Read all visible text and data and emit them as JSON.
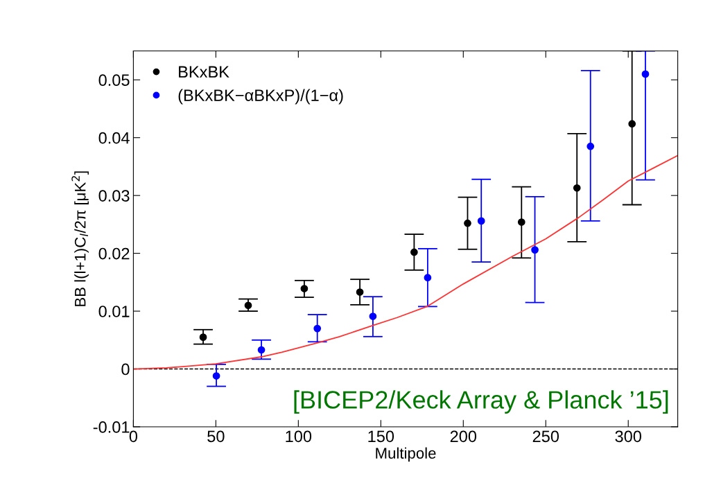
{
  "chart_data": {
    "type": "scatter",
    "xlabel": "Multipole",
    "ylabel": "BB l(l+1)C$_{l}$/2π [μK$^{2}$]",
    "xlim": [
      0,
      330
    ],
    "ylim": [
      -0.01,
      0.055
    ],
    "xticks": [
      0,
      50,
      100,
      150,
      200,
      250,
      300
    ],
    "yticks": [
      -0.01,
      0,
      0.01,
      0.02,
      0.03,
      0.04,
      0.05
    ],
    "grid": false,
    "legend": "top left",
    "marker": "circle",
    "series": [
      {
        "name": "BKxBK",
        "color": "#000000",
        "x": [
          42.3,
          69.6,
          103.6,
          137.3,
          170.2,
          202.6,
          235.3,
          268.9,
          302.3
        ],
        "values": [
          0.0055,
          0.011,
          0.0139,
          0.0133,
          0.0202,
          0.0252,
          0.0254,
          0.0313,
          0.0424
        ],
        "errors": [
          [
            0.0043,
            0.0068
          ],
          [
            0.01,
            0.0121
          ],
          [
            0.0124,
            0.0153
          ],
          [
            0.0111,
            0.0155
          ],
          [
            0.0171,
            0.0233
          ],
          [
            0.0207,
            0.0297
          ],
          [
            0.0192,
            0.0315
          ],
          [
            0.022,
            0.0407
          ],
          [
            0.0284,
            0.055
          ]
        ]
      },
      {
        "name": "(BKxBK−αBKxP)/(1−α)",
        "color": "#0000ff",
        "x": [
          50.3,
          77.6,
          111.5,
          145.2,
          178.4,
          210.9,
          243.4,
          277.1,
          310.4
        ],
        "values": [
          -0.0012,
          0.0033,
          0.007,
          0.0091,
          0.0158,
          0.0256,
          0.0206,
          0.0385,
          0.051
        ],
        "errors": [
          [
            -0.003,
            0.0008
          ],
          [
            0.0017,
            0.005
          ],
          [
            0.0047,
            0.0094
          ],
          [
            0.0056,
            0.0125
          ],
          [
            0.0108,
            0.0208
          ],
          [
            0.0185,
            0.0328
          ],
          [
            0.0115,
            0.0298
          ],
          [
            0.0256,
            0.0516
          ],
          [
            0.0327,
            0.055
          ]
        ]
      },
      {
        "type": "line",
        "color": "#ff3333",
        "marker": "none",
        "line_style": "solid",
        "x": [
          0,
          20,
          30,
          50,
          77.6,
          90,
          111.5,
          125,
          145,
          160,
          178,
          200,
          230,
          250,
          270,
          285,
          300,
          315,
          330
        ],
        "values": [
          0,
          0.0002,
          0.0004,
          0.0009,
          0.0021,
          0.0029,
          0.0045,
          0.0056,
          0.0075,
          0.0089,
          0.0108,
          0.0147,
          0.0195,
          0.0225,
          0.0262,
          0.0293,
          0.0325,
          0.0347,
          0.0369
        ]
      }
    ],
    "ref_lines": [
      {
        "axis": "y",
        "value": 0,
        "color": "#000000",
        "line_style": "dashed"
      }
    ],
    "annotations": [
      "[BICEP2/Keck Array & Planck ’15]"
    ]
  }
}
